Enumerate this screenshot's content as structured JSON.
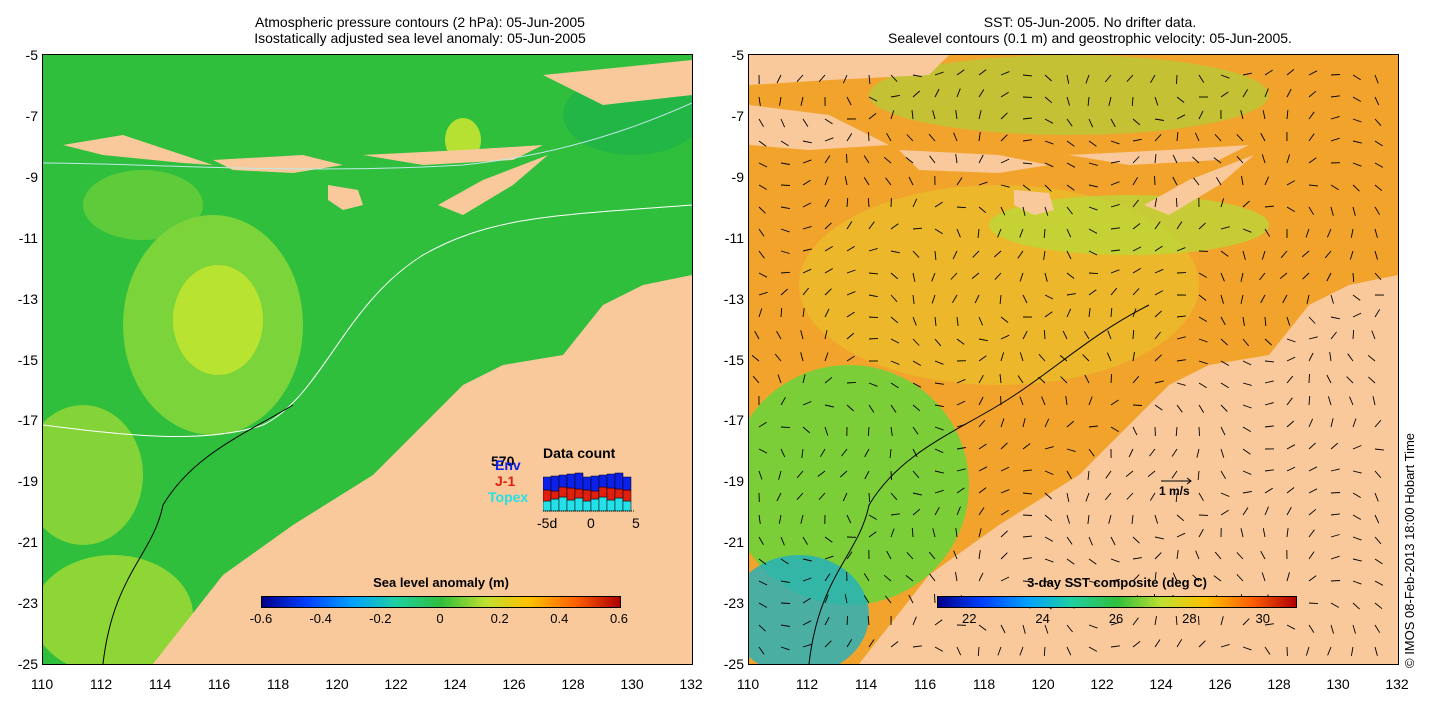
{
  "left_panel": {
    "title_line1": "Atmospheric pressure contours (2 hPa): 05-Jun-2005",
    "title_line2": "Isostatically adjusted sea level anomaly: 05-Jun-2005",
    "colorbar_title": "Sea level anomaly (m)",
    "colorbar_ticks": [
      "-0.6",
      "-0.4",
      "-0.2",
      "0",
      "0.2",
      "0.4",
      "0.6"
    ],
    "inset": {
      "title": "Data count",
      "count": "570",
      "series": [
        "Env",
        "J-1",
        "Topex"
      ],
      "xticks": [
        "-5",
        "0",
        "5"
      ],
      "suffix": "d"
    }
  },
  "right_panel": {
    "title_line1": "SST: 05-Jun-2005. No drifter data.",
    "title_line2": "Sealevel contours (0.1 m) and geostrophic velocity: 05-Jun-2005.",
    "colorbar_title": "3-day SST composite (deg C)",
    "colorbar_ticks": [
      "22",
      "24",
      "26",
      "28",
      "30"
    ],
    "scale_label": "1 m/s"
  },
  "axes": {
    "y_ticks": [
      "-5",
      "-7",
      "-9",
      "-11",
      "-13",
      "-15",
      "-17",
      "-19",
      "-21",
      "-23",
      "-25"
    ],
    "x_ticks": [
      "110",
      "112",
      "114",
      "116",
      "118",
      "120",
      "122",
      "124",
      "126",
      "128",
      "130",
      "132"
    ]
  },
  "credit": "© IMOS 08-Feb-2013 18:00 Hobart Time",
  "colors": {
    "land": "#f9c99c",
    "ocean_left": "#2fbf3c",
    "ocean_right": "#f2a32c",
    "env": "#0b21e8",
    "j1": "#e01f0f",
    "topex": "#24e0e8"
  }
}
